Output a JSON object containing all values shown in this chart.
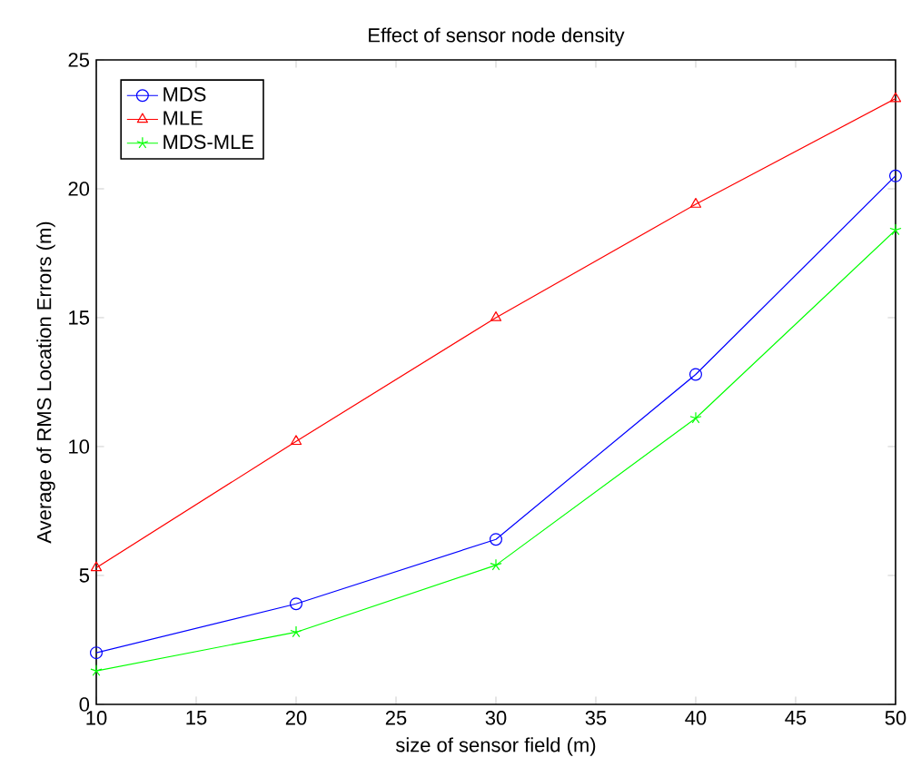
{
  "chart_data": {
    "type": "line",
    "title": "Effect of sensor node density",
    "xlabel": "size of sensor field (m)",
    "ylabel": "Average of RMS Location Errors (m)",
    "x": [
      10,
      20,
      30,
      40,
      50
    ],
    "series": [
      {
        "name": "MDS",
        "color": "#0000ff",
        "marker": "circle",
        "values": [
          2.0,
          3.9,
          6.4,
          12.8,
          20.5
        ]
      },
      {
        "name": "MLE",
        "color": "#ff0000",
        "marker": "triangle",
        "values": [
          5.3,
          10.2,
          15.0,
          19.4,
          23.5
        ]
      },
      {
        "name": "MDS-MLE",
        "color": "#00ff00",
        "marker": "cross",
        "values": [
          1.3,
          2.8,
          5.4,
          11.1,
          18.4
        ]
      }
    ],
    "xlim": [
      10,
      50
    ],
    "ylim": [
      0,
      25
    ],
    "xticks": [
      10,
      15,
      20,
      25,
      30,
      35,
      40,
      45,
      50
    ],
    "yticks": [
      0,
      5,
      10,
      15,
      20,
      25
    ],
    "grid": false,
    "legend": "top left",
    "line_style": "solid"
  }
}
